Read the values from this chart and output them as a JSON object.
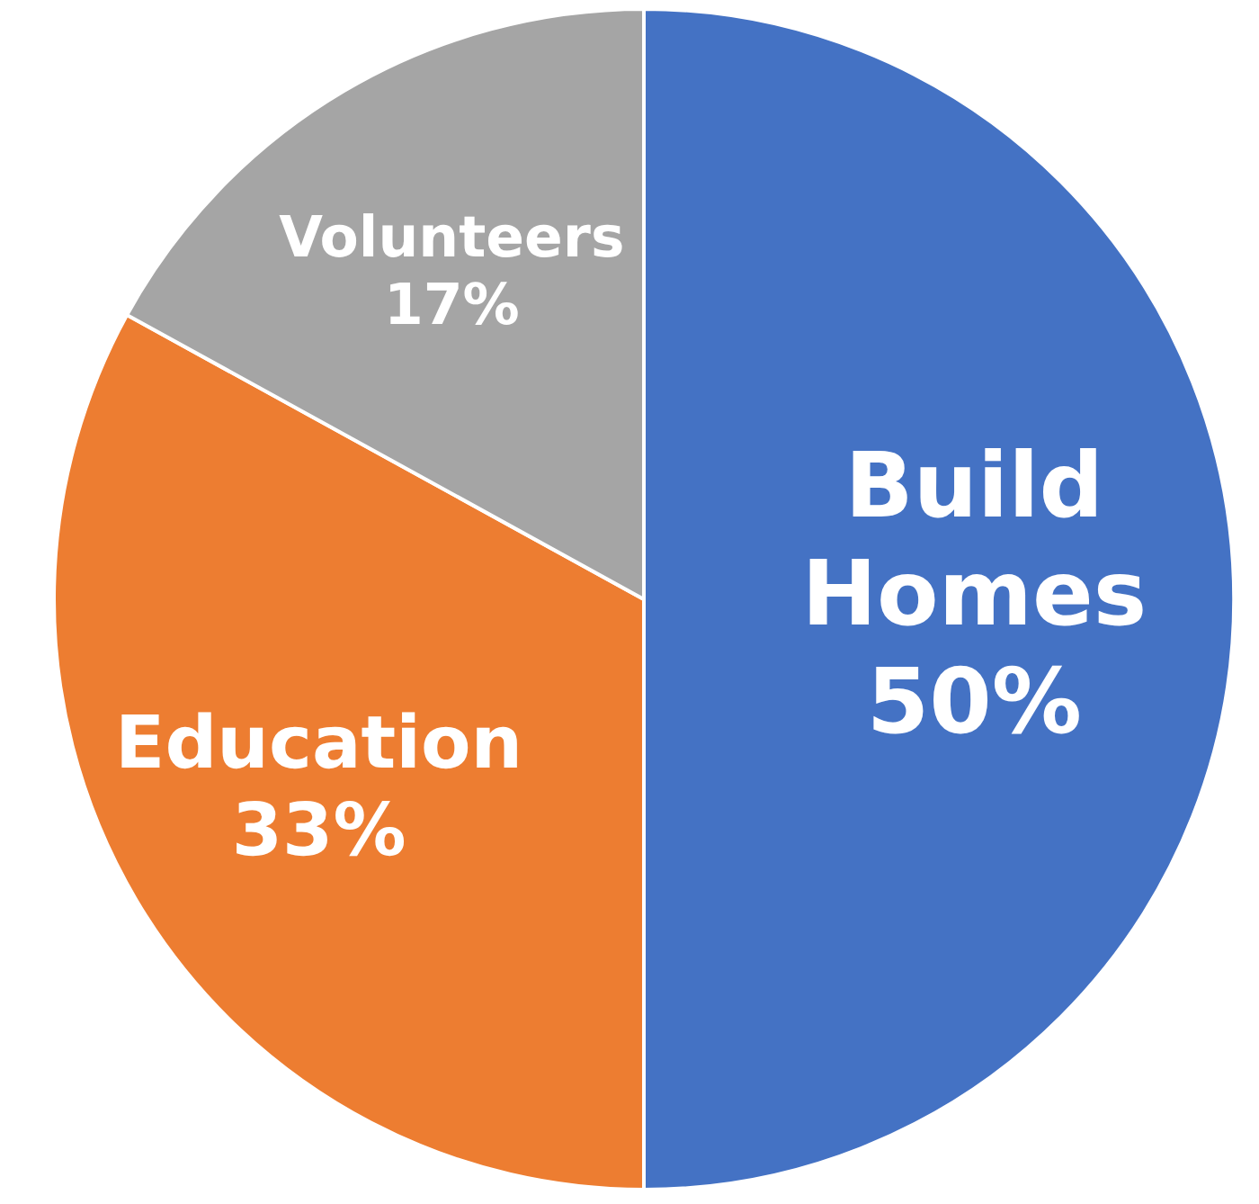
{
  "chart_data": {
    "type": "pie",
    "categories": [
      "Build Homes",
      "Education",
      "Volunteers"
    ],
    "values": [
      50,
      33,
      17
    ],
    "colors": [
      "#4472c4",
      "#ed7d31",
      "#a5a5a5"
    ],
    "value_labels": [
      "50%",
      "33%",
      "17%"
    ]
  }
}
